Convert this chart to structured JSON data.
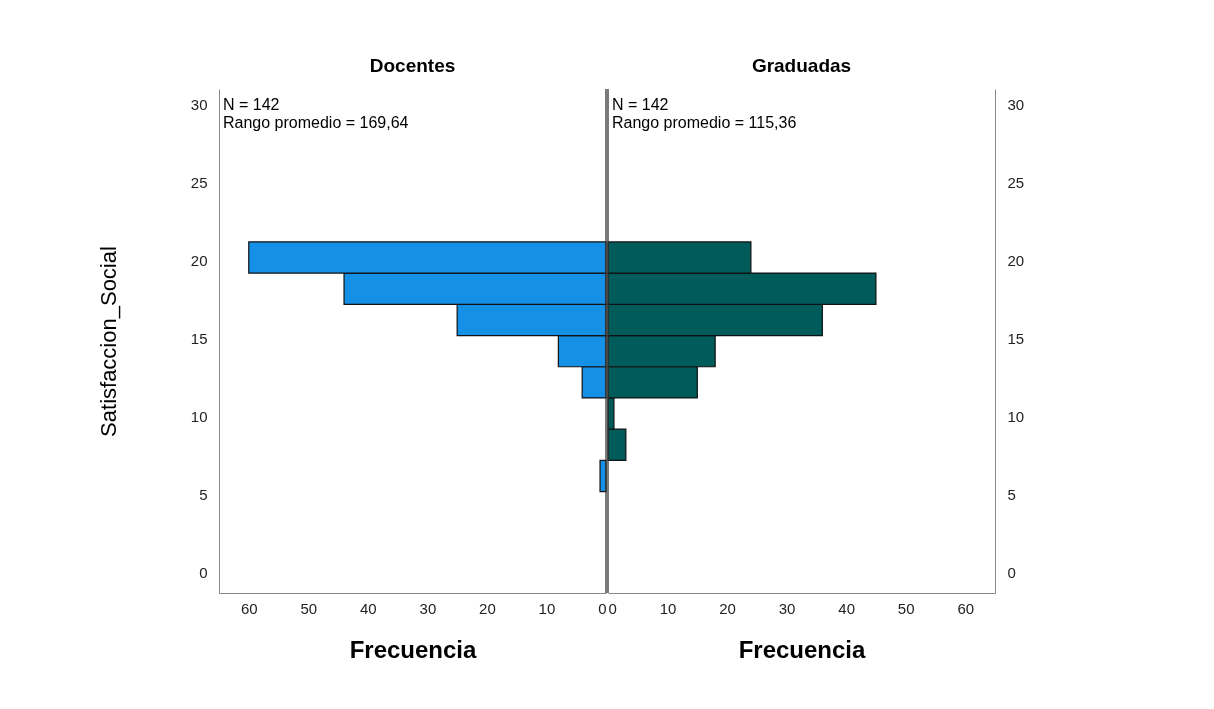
{
  "chart_data": [
    {
      "type": "histogram",
      "orientation": "horizontal",
      "title": "Docentes",
      "xlabel": "Frecuencia",
      "ylabel": "Satisfaccion_Social",
      "bins": [
        5.2,
        7.2,
        9.2,
        11.2,
        13.2,
        15.2,
        17.2,
        19.2,
        21.2
      ],
      "values": [
        1,
        0,
        0,
        4,
        8,
        25,
        44,
        60
      ],
      "color": "#1490e6",
      "xlim": [
        65,
        0
      ],
      "xticks": [
        60,
        50,
        40,
        30,
        20,
        10,
        0
      ],
      "ylim": [
        -1.3,
        31
      ],
      "yticks": [
        0,
        5,
        10,
        15,
        20,
        25,
        30
      ],
      "annotations": [
        "N = 142",
        "Rango promedio = 169,64"
      ],
      "grid": false
    },
    {
      "type": "histogram",
      "orientation": "horizontal",
      "title": "Graduadas",
      "xlabel": "Frecuencia",
      "bins": [
        5.2,
        7.2,
        9.2,
        11.2,
        13.2,
        15.2,
        17.2,
        19.2,
        21.2
      ],
      "values": [
        0,
        3,
        1,
        15,
        18,
        36,
        45,
        24
      ],
      "color": "#005c5a",
      "xlim": [
        0,
        65
      ],
      "xticks": [
        0,
        10,
        20,
        30,
        40,
        50,
        60
      ],
      "ylim": [
        -1.3,
        31
      ],
      "yticks": [
        0,
        5,
        10,
        15,
        20,
        25,
        30
      ],
      "annotations": [
        "N = 142",
        "Rango promedio = 115,36"
      ],
      "grid": false
    }
  ]
}
